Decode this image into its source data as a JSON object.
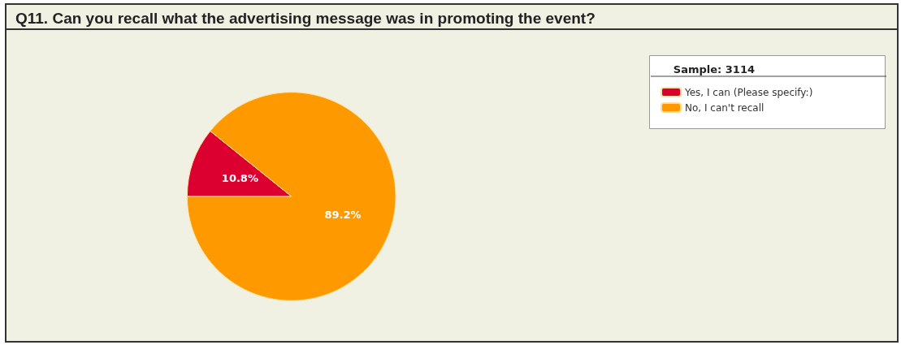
{
  "chart_data": {
    "type": "pie",
    "title": "Q11. Can you recall what the advertising message was in promoting the event?",
    "legend_title": "Sample: 3114",
    "categories": [
      "Yes, I can (Please specify:)",
      "No, I can't recall"
    ],
    "values": [
      10.8,
      89.2
    ],
    "colors": [
      "#dc0030",
      "#ff9900"
    ],
    "value_labels": [
      "10.8%",
      "89.2%"
    ],
    "legend": "top right"
  }
}
